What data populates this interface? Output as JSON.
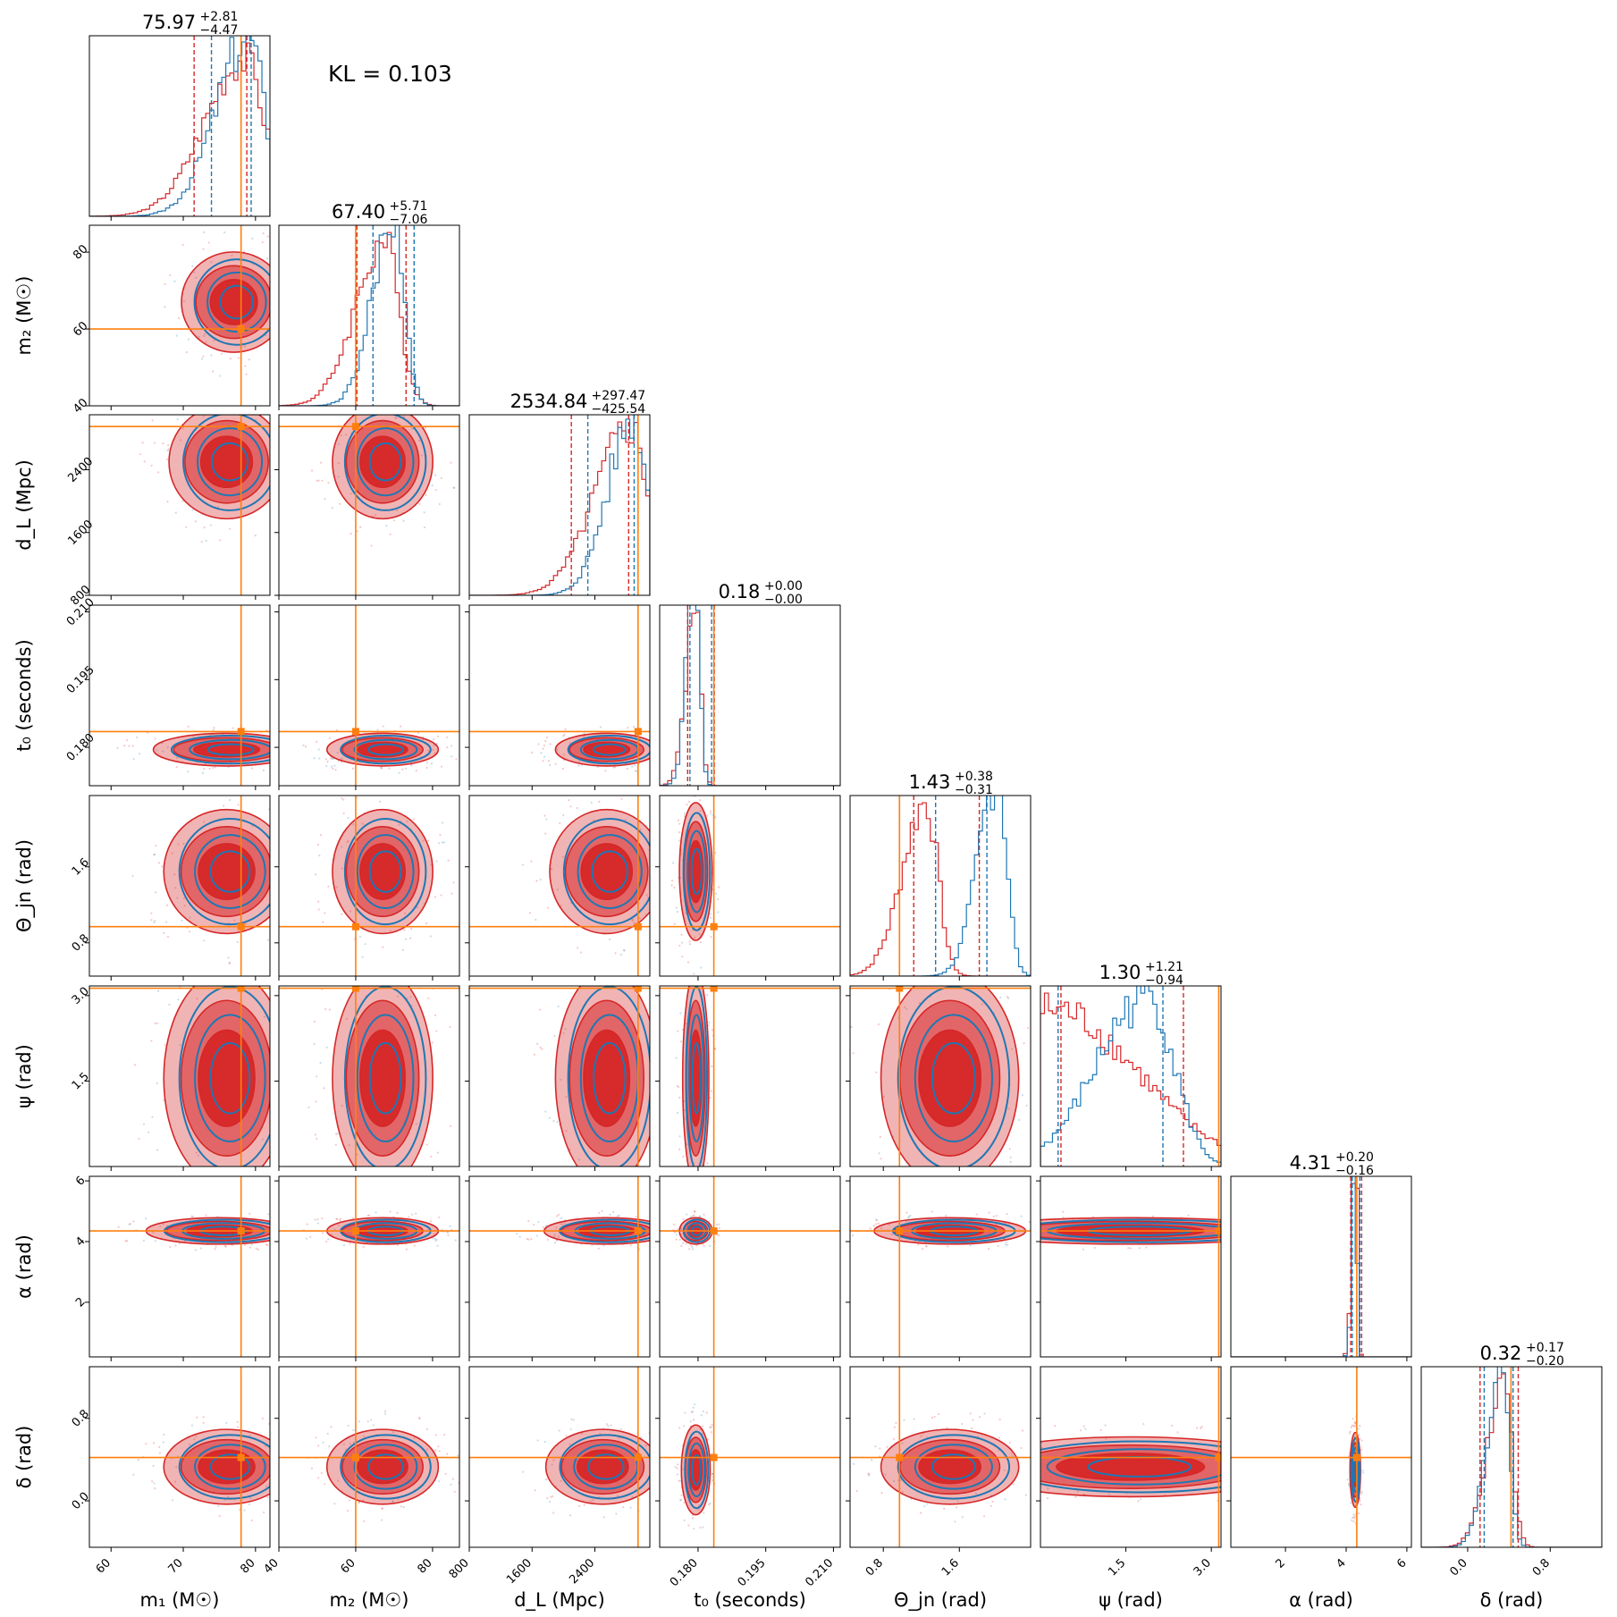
{
  "colors": {
    "red": "#d62728",
    "blue": "#1f77b4",
    "truth": "#ff7f0e"
  },
  "kl_text": "KL = 0.103",
  "chart_data": {
    "type": "corner",
    "series": [
      {
        "color": "#d62728"
      },
      {
        "color": "#1f77b4"
      }
    ],
    "params": [
      {
        "key": "m1",
        "label": "m₁ (M☉)",
        "range": [
          57,
          82
        ],
        "truth": 78,
        "ticks": [
          {
            "v": 60,
            "t": "60"
          },
          {
            "v": 70,
            "t": "70"
          },
          {
            "v": 80,
            "t": "80"
          }
        ],
        "title": {
          "median": "75.97",
          "up": "+2.81",
          "down": "−4.47"
        },
        "hist": {
          "red_peak": 78.5,
          "red_w": 5.5,
          "blue_peak": 79,
          "blue_w": 4.5,
          "q_red": [
            71.5,
            78.8
          ],
          "q_blue": [
            73.9,
            79.4
          ]
        }
      },
      {
        "key": "m2",
        "label": "m₂ (M☉)",
        "range": [
          40,
          87
        ],
        "truth": 60,
        "ticks": [
          {
            "v": 40,
            "t": "40"
          },
          {
            "v": 60,
            "t": "60"
          },
          {
            "v": 80,
            "t": "80"
          }
        ],
        "title": {
          "median": "67.40",
          "up": "+5.71",
          "down": "−7.06"
        },
        "hist": {
          "red_peak": 67.5,
          "red_w": 7.5,
          "blue_peak": 70,
          "blue_w": 5.5,
          "q_red": [
            60.3,
            73.1
          ],
          "q_blue": [
            64.5,
            75.2
          ]
        }
      },
      {
        "key": "dL",
        "label": "d_L (Mpc)",
        "range": [
          800,
          3100
        ],
        "truth": 2950,
        "ticks": [
          {
            "v": 800,
            "t": "800"
          },
          {
            "v": 1600,
            "t": "1600"
          },
          {
            "v": 2400,
            "t": "2400"
          }
        ],
        "title": {
          "median": "2534.84",
          "up": "+297.47",
          "down": "−425.54"
        },
        "hist": {
          "red_peak": 2850,
          "red_w": 450,
          "blue_peak": 2900,
          "blue_w": 330,
          "q_red": [
            2100,
            2830
          ],
          "q_blue": [
            2310,
            2900
          ]
        }
      },
      {
        "key": "t0",
        "label": "t₀ (seconds)",
        "range": [
          0.1715,
          0.2115
        ],
        "truth": 0.1835,
        "ticks": [
          {
            "v": 0.18,
            "t": "0.180"
          },
          {
            "v": 0.195,
            "t": "0.195"
          },
          {
            "v": 0.21,
            "t": "0.210"
          }
        ],
        "title": {
          "median": "0.18",
          "up": "+0.00",
          "down": "−0.00"
        },
        "hist": {
          "red_peak": 0.1795,
          "red_w": 0.0022,
          "blue_peak": 0.1795,
          "blue_w": 0.0019,
          "q_red": [
            0.1777,
            0.1836
          ],
          "q_blue": [
            0.1782,
            0.183
          ]
        }
      },
      {
        "key": "theta",
        "label": "Θ_jn (rad)",
        "range": [
          0.45,
          2.35
        ],
        "truth": 0.97,
        "ticks": [
          {
            "v": 0.8,
            "t": "0.8"
          },
          {
            "v": 1.6,
            "t": "1.6"
          }
        ],
        "title": {
          "median": "1.43",
          "up": "+0.38",
          "down": "−0.31"
        },
        "hist": {
          "red_peak": 1.25,
          "red_w": 0.25,
          "blue_peak": 2.0,
          "blue_w": 0.2,
          "q_red": [
            1.12,
            1.81
          ],
          "q_blue": [
            1.35,
            1.89
          ]
        }
      },
      {
        "key": "psi",
        "label": "ψ (rad)",
        "range": [
          0.0,
          3.17
        ],
        "truth": 3.13,
        "ticks": [
          {
            "v": 1.5,
            "t": "1.5"
          },
          {
            "v": 3.0,
            "t": "3.0"
          }
        ],
        "title": {
          "median": "1.30",
          "up": "+1.21",
          "down": "−0.94"
        },
        "hist": {
          "red_peak": 0.2,
          "red_w": 3.0,
          "blue_peak": 1.9,
          "blue_w": 0.9,
          "q_red": [
            0.36,
            2.51
          ],
          "q_blue": [
            0.31,
            2.15
          ]
        }
      },
      {
        "key": "alpha",
        "label": "α (rad)",
        "range": [
          0.2,
          6.15
        ],
        "truth": 4.35,
        "ticks": [
          {
            "v": 2,
            "t": "2"
          },
          {
            "v": 4,
            "t": "4"
          },
          {
            "v": 6,
            "t": "6"
          }
        ],
        "title": {
          "median": "4.31",
          "up": "+0.20",
          "down": "−0.16"
        },
        "hist": {
          "red_peak": 4.32,
          "red_w": 0.12,
          "blue_peak": 4.3,
          "blue_w": 0.1,
          "q_red": [
            4.15,
            4.51
          ],
          "q_blue": [
            4.2,
            4.45
          ]
        }
      },
      {
        "key": "delta",
        "label": "δ (rad)",
        "range": [
          -0.45,
          1.3
        ],
        "truth": 0.42,
        "ticks": [
          {
            "v": 0.0,
            "t": "0.0"
          },
          {
            "v": 0.8,
            "t": "0.8"
          }
        ],
        "title": {
          "median": "0.32",
          "up": "+0.17",
          "down": "−0.20"
        },
        "hist": {
          "red_peak": 0.35,
          "red_w": 0.16,
          "blue_peak": 0.33,
          "blue_w": 0.14,
          "q_red": [
            0.12,
            0.49
          ],
          "q_blue": [
            0.16,
            0.44
          ]
        }
      }
    ],
    "pairs": [
      {
        "row": 1,
        "col": 0,
        "center": [
          77,
          67
        ],
        "spread": [
          5,
          9
        ]
      },
      {
        "row": 2,
        "col": 0,
        "center": [
          76,
          2500
        ],
        "spread": [
          5.5,
          500
        ]
      },
      {
        "row": 2,
        "col": 1,
        "center": [
          67,
          2500
        ],
        "spread": [
          9,
          500
        ]
      },
      {
        "row": 3,
        "col": 0,
        "center": [
          76,
          0.1795
        ],
        "spread": [
          7,
          0.0025
        ]
      },
      {
        "row": 3,
        "col": 1,
        "center": [
          67,
          0.1795
        ],
        "spread": [
          10,
          0.0025
        ]
      },
      {
        "row": 3,
        "col": 2,
        "center": [
          2550,
          0.1795
        ],
        "spread": [
          450,
          0.0025
        ]
      },
      {
        "row": 4,
        "col": 0,
        "center": [
          76,
          1.55
        ],
        "spread": [
          6,
          0.45
        ]
      },
      {
        "row": 4,
        "col": 1,
        "center": [
          67,
          1.55
        ],
        "spread": [
          9,
          0.45
        ]
      },
      {
        "row": 4,
        "col": 2,
        "center": [
          2550,
          1.55
        ],
        "spread": [
          500,
          0.45
        ]
      },
      {
        "row": 4,
        "col": 3,
        "center": [
          0.1795,
          1.55
        ],
        "spread": [
          0.0025,
          0.5
        ]
      },
      {
        "row": 5,
        "col": 0,
        "center": [
          76,
          1.55
        ],
        "spread": [
          6,
          1.3
        ]
      },
      {
        "row": 5,
        "col": 1,
        "center": [
          67,
          1.55
        ],
        "spread": [
          9,
          1.3
        ]
      },
      {
        "row": 5,
        "col": 2,
        "center": [
          2550,
          1.55
        ],
        "spread": [
          450,
          1.3
        ]
      },
      {
        "row": 5,
        "col": 3,
        "center": [
          0.1795,
          1.55
        ],
        "spread": [
          0.002,
          1.3
        ]
      },
      {
        "row": 5,
        "col": 4,
        "center": [
          1.5,
          1.55
        ],
        "spread": [
          0.5,
          1.3
        ]
      },
      {
        "row": 6,
        "col": 0,
        "center": [
          75,
          4.35
        ],
        "spread": [
          7,
          0.3
        ]
      },
      {
        "row": 6,
        "col": 1,
        "center": [
          67,
          4.35
        ],
        "spread": [
          10,
          0.3
        ]
      },
      {
        "row": 6,
        "col": 2,
        "center": [
          2550,
          4.35
        ],
        "spread": [
          550,
          0.3
        ]
      },
      {
        "row": 6,
        "col": 3,
        "center": [
          0.1795,
          4.35
        ],
        "spread": [
          0.0025,
          0.3
        ]
      },
      {
        "row": 6,
        "col": 4,
        "center": [
          1.5,
          4.35
        ],
        "spread": [
          0.55,
          0.3
        ]
      },
      {
        "row": 6,
        "col": 5,
        "center": [
          1.58,
          4.35
        ],
        "spread": [
          2.0,
          0.3
        ]
      },
      {
        "row": 7,
        "col": 0,
        "center": [
          76,
          0.33
        ],
        "spread": [
          6,
          0.25
        ]
      },
      {
        "row": 7,
        "col": 1,
        "center": [
          67,
          0.33
        ],
        "spread": [
          10,
          0.25
        ]
      },
      {
        "row": 7,
        "col": 2,
        "center": [
          2500,
          0.33
        ],
        "spread": [
          500,
          0.25
        ]
      },
      {
        "row": 7,
        "col": 3,
        "center": [
          0.1795,
          0.3
        ],
        "spread": [
          0.0022,
          0.3
        ]
      },
      {
        "row": 7,
        "col": 4,
        "center": [
          1.5,
          0.33
        ],
        "spread": [
          0.5,
          0.25
        ]
      },
      {
        "row": 7,
        "col": 5,
        "center": [
          1.58,
          0.33
        ],
        "spread": [
          2.0,
          0.2
        ]
      },
      {
        "row": 7,
        "col": 6,
        "center": [
          4.3,
          0.3
        ],
        "spread": [
          0.12,
          0.25
        ]
      }
    ]
  }
}
